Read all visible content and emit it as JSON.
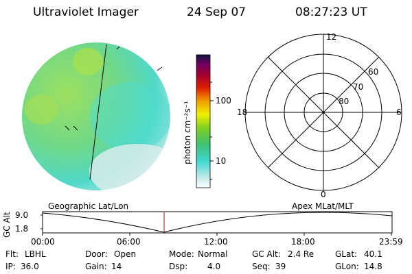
{
  "header": {
    "instrument": "Ultraviolet Imager",
    "date": "24 Sep 07",
    "time": "08:27:23 UT"
  },
  "colorbar": {
    "label": "photon cm⁻²s⁻¹",
    "ticks": [
      "100",
      "10"
    ]
  },
  "polar_plot": {
    "mlt_labels": {
      "top": "12",
      "left": "18",
      "right": "6",
      "bottom": "0"
    },
    "lat_labels": [
      "60",
      "70",
      "80"
    ]
  },
  "orbit_panel": {
    "left_title": "Geographic Lat/Lon",
    "right_title": "Apex MLat/MLT",
    "y_label": "GC Alt",
    "y_ticks": [
      "9.0",
      "1.8"
    ],
    "x_ticks": [
      "00:00",
      "06:00",
      "12:00",
      "18:00",
      "23:59"
    ],
    "marker_color": "#cc0000"
  },
  "status": {
    "row1": [
      {
        "label": "Flt:",
        "value": "LBHL"
      },
      {
        "label": "Door:",
        "value": "Open"
      },
      {
        "label": "Mode:",
        "value": "Normal"
      },
      {
        "label": "GC Alt:",
        "value": "2.4 Re"
      },
      {
        "label": "GLat:",
        "value": "40.1"
      }
    ],
    "row2": [
      {
        "label": "IP:",
        "value": "36.0"
      },
      {
        "label": "Gain:",
        "value": "14"
      },
      {
        "label": "Dsp:",
        "value": "4.0"
      },
      {
        "label": "Seq:",
        "value": "39"
      },
      {
        "label": "GLon:",
        "value": "14.8"
      }
    ]
  }
}
